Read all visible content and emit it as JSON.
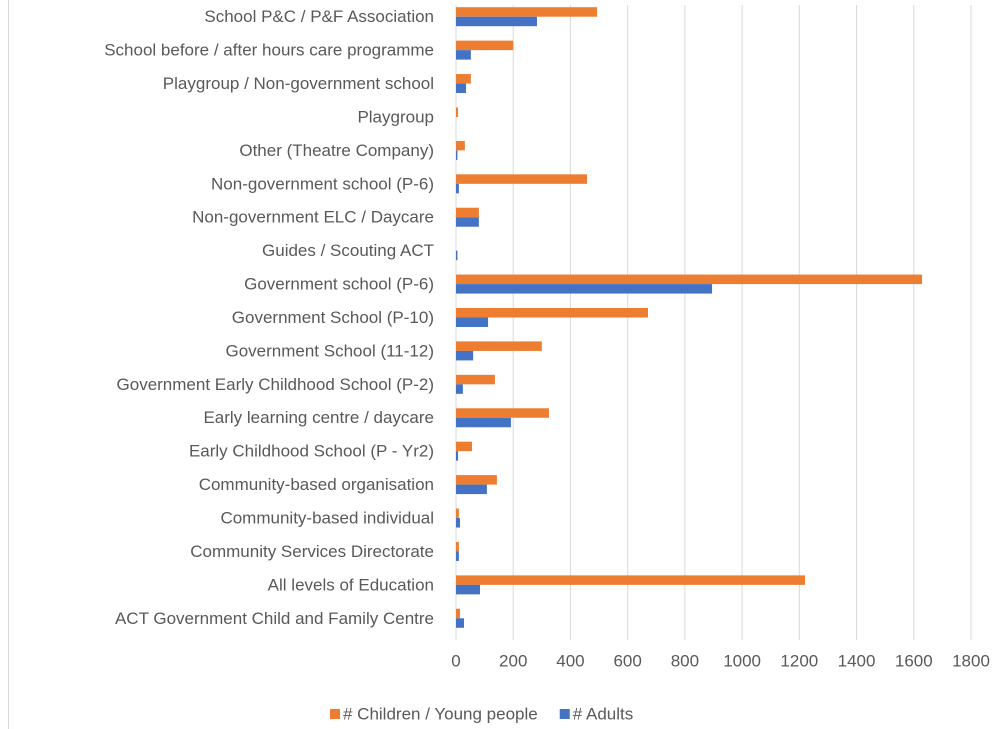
{
  "chart_data": {
    "type": "bar",
    "orientation": "horizontal",
    "categories": [
      "School P&C / P&F Association",
      "School before / after hours care programme",
      "Playgroup / Non-government school",
      "Playgroup",
      "Other (Theatre Company)",
      "Non-government school (P-6)",
      "Non-government ELC / Daycare",
      "Guides / Scouting ACT",
      "Government school (P-6)",
      "Government School (P-10)",
      "Government School (11-12)",
      "Government Early Childhood School (P-2)",
      "Early learning centre / daycare",
      "Early Childhood School (P - Yr2)",
      "Community-based organisation",
      "Community-based individual",
      "Community Services Directorate",
      "All levels of Education",
      "ACT Government Child and Family Centre"
    ],
    "series": [
      {
        "name": "# Children / Young people",
        "color": "#ed7d31",
        "values": [
          493,
          200,
          52,
          7,
          31,
          458,
          80,
          0,
          1629,
          671,
          300,
          136,
          325,
          56,
          143,
          10,
          10,
          1220,
          14
        ]
      },
      {
        "name": "# Adults",
        "color": "#4472c4",
        "values": [
          283,
          52,
          35,
          0,
          5,
          10,
          80,
          5,
          895,
          112,
          60,
          24,
          192,
          7,
          108,
          14,
          10,
          84,
          28
        ]
      }
    ],
    "xlim": [
      0,
      1800
    ],
    "xticks": [
      0,
      200,
      400,
      600,
      800,
      1000,
      1200,
      1400,
      1600,
      1800
    ],
    "grid": true,
    "legend": "bottom"
  }
}
